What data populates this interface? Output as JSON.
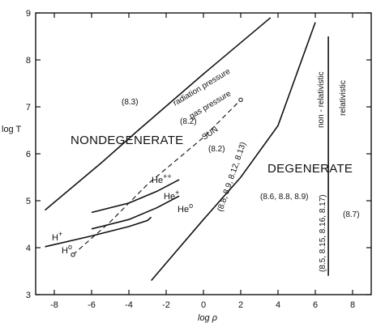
{
  "chart_data": {
    "type": "line",
    "xlabel": "log ρ",
    "ylabel": "log T",
    "xlim": [
      -9,
      9
    ],
    "ylim": [
      3,
      9
    ],
    "x_ticks": [
      -8,
      -6,
      -4,
      -2,
      0,
      2,
      4,
      6,
      8
    ],
    "x_tick_labels": [
      "-8",
      "-6",
      "-4",
      "-2",
      "0",
      "2",
      "4",
      "6",
      "8"
    ],
    "y_ticks": [
      3,
      4,
      5,
      6,
      7,
      8,
      9
    ],
    "y_tick_labels": [
      "3",
      "4",
      "5",
      "6",
      "7",
      "8",
      "9"
    ],
    "grid": false,
    "series": [
      {
        "id": "radiation-gas-boundary",
        "points": [
          [
            -8.5,
            4.8
          ],
          [
            -5.5,
            5.8
          ],
          [
            -3.5,
            6.5
          ],
          [
            0,
            7.7
          ],
          [
            3.6,
            8.9
          ]
        ]
      },
      {
        "id": "degeneracy-boundary",
        "points": [
          [
            -2.8,
            3.3
          ],
          [
            0,
            4.6
          ],
          [
            2,
            5.5
          ],
          [
            4,
            6.6
          ],
          [
            6,
            8.8
          ]
        ]
      },
      {
        "id": "relativistic-boundary",
        "points": [
          [
            6.7,
            3.4
          ],
          [
            6.7,
            8.5
          ]
        ]
      },
      {
        "id": "he-plus-plus-curve",
        "points": [
          [
            -6,
            4.75
          ],
          [
            -4,
            4.95
          ],
          [
            -2.5,
            5.2
          ],
          [
            -1.3,
            5.45
          ]
        ]
      },
      {
        "id": "he-plus-curve",
        "points": [
          [
            -6,
            4.4
          ],
          [
            -4,
            4.6
          ],
          [
            -2.5,
            4.85
          ],
          [
            -1.3,
            5.1
          ]
        ]
      },
      {
        "id": "hydrogen-curve",
        "points": [
          [
            -8.5,
            4.02
          ],
          [
            -6,
            4.25
          ],
          [
            -4,
            4.45
          ],
          [
            -3,
            4.58
          ],
          [
            -2.8,
            4.65
          ]
        ]
      },
      {
        "id": "sun-track",
        "style": "dashed",
        "points": [
          [
            -7,
            3.85
          ],
          [
            -5,
            4.55
          ],
          [
            -3,
            5.35
          ],
          [
            0,
            6.35
          ],
          [
            2,
            7.15
          ]
        ],
        "endpoints": [
          [
            -7,
            3.85
          ],
          [
            2,
            7.15
          ]
        ]
      }
    ],
    "annotations": {
      "nondegenerate": "NONDEGENERATE",
      "degenerate": "DEGENERATE",
      "radiation_pressure": "radiation pressure",
      "gas_pressure": "gas pressure",
      "sun": "SUN",
      "non_relativistic": "non - relativistic",
      "relativistic": "relativistic",
      "eq_83": "(8.3)",
      "eq_82_top": "(8.2)",
      "eq_82_mid": "(8.2)",
      "eq_diag": "(8.8, 8.9, 8.12, 8.13)",
      "eq_degenerate": "(8.6, 8.8, 8.9)",
      "eq_vertical": "(8.5, 8.15, 8.16, 8.17)",
      "eq_87": "(8.7)",
      "he_plus_plus": "He",
      "he_plus_plus_sup": "++",
      "he_plus": "He",
      "he_plus_sup": "+",
      "he_zero": "He",
      "he_zero_sup": "o",
      "h_plus": "H",
      "h_plus_sup": "+",
      "h_zero": "H",
      "h_zero_sup": "o"
    }
  }
}
